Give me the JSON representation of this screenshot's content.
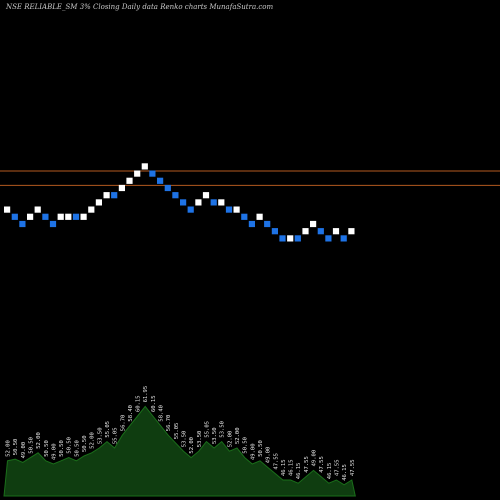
{
  "header": {
    "title": "NSE RELIABLE_SM 3% Closing Daily data  Renko  charts MunafaSutra.com"
  },
  "colors": {
    "background": "#000000",
    "up_brick": "#ffffff",
    "down_brick": "#1e73e6",
    "ref_line": "#b35a1f",
    "volume_fill": "#0f3d10",
    "volume_stroke": "#1a6e1a",
    "label": "#e6e6e6"
  },
  "chart_data": {
    "type": "renko",
    "title": "NSE RELIABLE_SM 3% Closing Daily data  Renko  charts MunafaSutra.com",
    "brick_percent": 3,
    "reference_lines": [
      3,
      5
    ],
    "bricks": [
      {
        "row": 0,
        "dir": "up"
      },
      {
        "row": -1,
        "dir": "down"
      },
      {
        "row": -2,
        "dir": "down"
      },
      {
        "row": -1,
        "dir": "up"
      },
      {
        "row": 0,
        "dir": "up"
      },
      {
        "row": -1,
        "dir": "down"
      },
      {
        "row": -2,
        "dir": "down"
      },
      {
        "row": -1,
        "dir": "up"
      },
      {
        "row": -1,
        "dir": "up"
      },
      {
        "row": -1,
        "dir": "down"
      },
      {
        "row": -1,
        "dir": "up"
      },
      {
        "row": 0,
        "dir": "up"
      },
      {
        "row": 1,
        "dir": "up"
      },
      {
        "row": 2,
        "dir": "up"
      },
      {
        "row": 2,
        "dir": "down"
      },
      {
        "row": 3,
        "dir": "up"
      },
      {
        "row": 4,
        "dir": "up"
      },
      {
        "row": 5,
        "dir": "up"
      },
      {
        "row": 6,
        "dir": "up"
      },
      {
        "row": 5,
        "dir": "down"
      },
      {
        "row": 4,
        "dir": "down"
      },
      {
        "row": 3,
        "dir": "down"
      },
      {
        "row": 2,
        "dir": "down"
      },
      {
        "row": 1,
        "dir": "down"
      },
      {
        "row": 0,
        "dir": "down"
      },
      {
        "row": 1,
        "dir": "up"
      },
      {
        "row": 2,
        "dir": "up"
      },
      {
        "row": 1,
        "dir": "down"
      },
      {
        "row": 1,
        "dir": "up"
      },
      {
        "row": 0,
        "dir": "down"
      },
      {
        "row": 0,
        "dir": "up"
      },
      {
        "row": -1,
        "dir": "down"
      },
      {
        "row": -2,
        "dir": "down"
      },
      {
        "row": -1,
        "dir": "up"
      },
      {
        "row": -2,
        "dir": "down"
      },
      {
        "row": -3,
        "dir": "down"
      },
      {
        "row": -4,
        "dir": "down"
      },
      {
        "row": -4,
        "dir": "up"
      },
      {
        "row": -4,
        "dir": "down"
      },
      {
        "row": -3,
        "dir": "up"
      },
      {
        "row": -2,
        "dir": "up"
      },
      {
        "row": -3,
        "dir": "down"
      },
      {
        "row": -4,
        "dir": "down"
      },
      {
        "row": -3,
        "dir": "up"
      },
      {
        "row": -4,
        "dir": "down"
      },
      {
        "row": -3,
        "dir": "up"
      }
    ],
    "volume": [
      0.22,
      0.23,
      0.21,
      0.24,
      0.27,
      0.22,
      0.2,
      0.22,
      0.24,
      0.22,
      0.25,
      0.27,
      0.3,
      0.34,
      0.3,
      0.38,
      0.44,
      0.5,
      0.56,
      0.5,
      0.44,
      0.38,
      0.33,
      0.28,
      0.24,
      0.28,
      0.34,
      0.3,
      0.34,
      0.28,
      0.3,
      0.24,
      0.2,
      0.22,
      0.18,
      0.14,
      0.1,
      0.1,
      0.08,
      0.12,
      0.16,
      0.12,
      0.08,
      0.1,
      0.07,
      0.1
    ],
    "price_labels": [
      "52.00",
      "50.50",
      "49.00",
      "50.50",
      "52.00",
      "50.50",
      "49.00",
      "50.50",
      "50.50",
      "50.50",
      "50.50",
      "52.00",
      "53.50",
      "55.05",
      "55.05",
      "56.70",
      "58.40",
      "60.15",
      "61.95",
      "60.15",
      "58.40",
      "56.70",
      "55.05",
      "53.50",
      "52.00",
      "53.50",
      "55.05",
      "53.50",
      "53.50",
      "52.00",
      "52.00",
      "50.50",
      "49.00",
      "50.50",
      "49.00",
      "47.55",
      "46.15",
      "46.15",
      "46.15",
      "47.55",
      "49.00",
      "47.55",
      "46.15",
      "47.55",
      "46.15",
      "47.55"
    ]
  }
}
